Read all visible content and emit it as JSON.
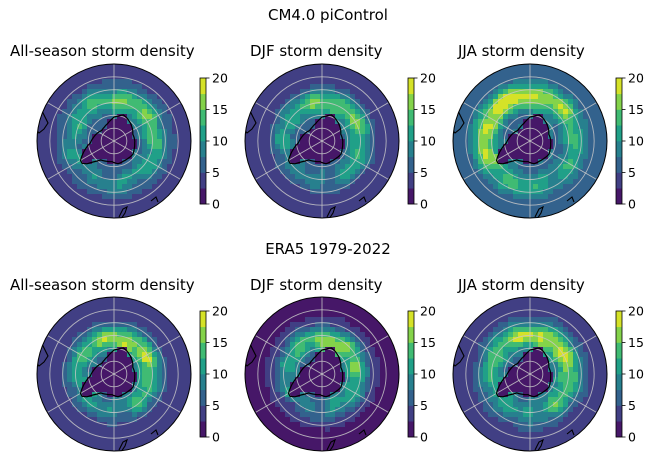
{
  "figure": {
    "row_titles": [
      "CM4.0 piControl",
      "ERA5 1979-2022"
    ]
  },
  "colormap": {
    "name": "viridis",
    "stops": [
      "#440154",
      "#482878",
      "#3e4989",
      "#31688e",
      "#26828e",
      "#1f9e89",
      "#35b779",
      "#6ece58",
      "#b5de2b",
      "#fde725"
    ]
  },
  "colorbar": {
    "min": 0,
    "max": 20,
    "ticks": [
      "0",
      "5",
      "10",
      "15",
      "20"
    ]
  },
  "chart_data": [
    {
      "type": "heatmap",
      "projection": "south-polar-stereographic",
      "title": "All-season storm density",
      "dataset": "CM4.0 piControl",
      "vlim": [
        0,
        20
      ],
      "storm_band": {
        "center_lat": -58,
        "peak_density": 15,
        "peak_sector_lon": 60
      },
      "antarctica_density": 0,
      "outer_density": 4
    },
    {
      "type": "heatmap",
      "projection": "south-polar-stereographic",
      "title": "DJF storm density",
      "dataset": "CM4.0 piControl",
      "vlim": [
        0,
        20
      ],
      "storm_band": {
        "center_lat": -60,
        "peak_density": 15,
        "peak_sector_lon": 60
      },
      "antarctica_density": 0,
      "outer_density": 3
    },
    {
      "type": "heatmap",
      "projection": "south-polar-stereographic",
      "title": "JJA storm density",
      "dataset": "CM4.0 piControl",
      "vlim": [
        0,
        20
      ],
      "storm_band": {
        "center_lat": -55,
        "peak_density": 19,
        "peak_sector_lon": 120
      },
      "antarctica_density": 0,
      "outer_density": 5
    },
    {
      "type": "heatmap",
      "projection": "south-polar-stereographic",
      "title": "All-season storm density",
      "dataset": "ERA5 1979-2022",
      "vlim": [
        0,
        20
      ],
      "storm_band": {
        "center_lat": -62,
        "peak_density": 17,
        "peak_sector_lon": 60
      },
      "antarctica_density": 0,
      "outer_density": 3
    },
    {
      "type": "heatmap",
      "projection": "south-polar-stereographic",
      "title": "DJF storm density",
      "dataset": "ERA5 1979-2022",
      "vlim": [
        0,
        20
      ],
      "storm_band": {
        "center_lat": -63,
        "peak_density": 16,
        "peak_sector_lon": 60
      },
      "antarctica_density": 0,
      "outer_density": 2
    },
    {
      "type": "heatmap",
      "projection": "south-polar-stereographic",
      "title": "JJA storm density",
      "dataset": "ERA5 1979-2022",
      "vlim": [
        0,
        20
      ],
      "storm_band": {
        "center_lat": -60,
        "peak_density": 18,
        "peak_sector_lon": 60
      },
      "antarctica_density": 0,
      "outer_density": 4
    }
  ]
}
